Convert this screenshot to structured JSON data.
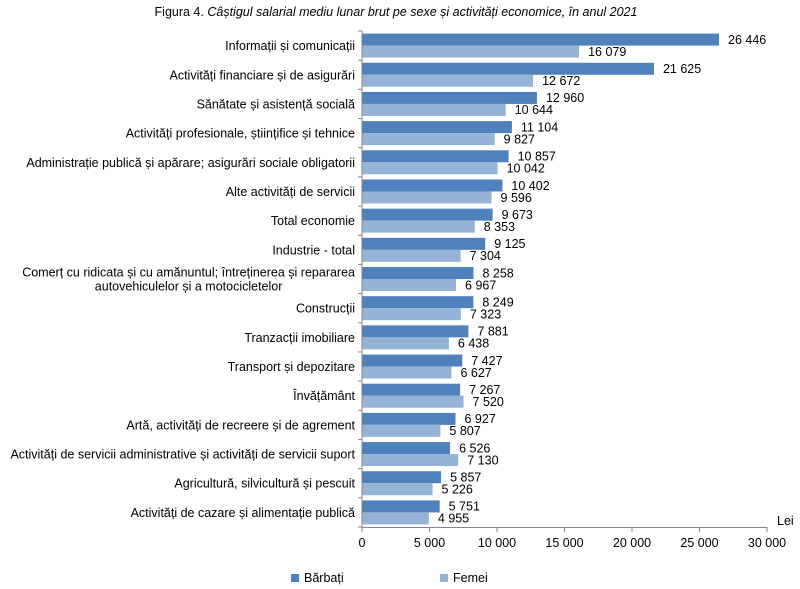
{
  "figure_label": "Figura 4.",
  "chart_data": {
    "type": "bar",
    "orientation": "horizontal",
    "title": "Câștigul salarial mediu lunar brut pe sexe și activități economice, în anul 2021",
    "xlabel": "Lei",
    "ylabel": "",
    "xlim": [
      0,
      30000
    ],
    "x_ticks": [
      0,
      5000,
      10000,
      15000,
      20000,
      25000,
      30000
    ],
    "x_tick_labels": [
      "0",
      "5 000",
      "10 000",
      "15 000",
      "20 000",
      "25 000",
      "30 000"
    ],
    "grid": false,
    "legend_position": "bottom",
    "data_labels": true,
    "categories": [
      "Informații și comunicații",
      "Activități financiare și de asigurări",
      "Sănătate și asistență socială",
      "Activități profesionale, științifice și tehnice",
      "Administrație publică și apărare; asigurări sociale obligatorii",
      "Alte activități de servicii",
      "Total economie",
      "Industrie - total",
      "Comerț cu ridicata și cu amănuntul; întreținerea și repararea autovehiculelor și a motocicletelor",
      "Construcții",
      "Tranzacții imobiliare",
      "Transport și depozitare",
      "Învățământ",
      "Artă, activități de recreere și de agrement",
      "Activități de servicii administrative și activități de servicii suport",
      "Agricultură, silvicultură și pescuit",
      "Activități de cazare și alimentație publică"
    ],
    "series": [
      {
        "name": "Bărbați",
        "color": "#4f81bd",
        "values": [
          26446,
          21625,
          12960,
          11104,
          10857,
          10402,
          9673,
          9125,
          8258,
          8249,
          7881,
          7427,
          7267,
          6927,
          6526,
          5857,
          5751
        ]
      },
      {
        "name": "Femei",
        "color": "#95b3d7",
        "values": [
          16079,
          12672,
          10644,
          9827,
          10042,
          9596,
          8353,
          7304,
          6967,
          7323,
          6438,
          6627,
          7520,
          5807,
          7130,
          5226,
          4955
        ]
      }
    ]
  }
}
